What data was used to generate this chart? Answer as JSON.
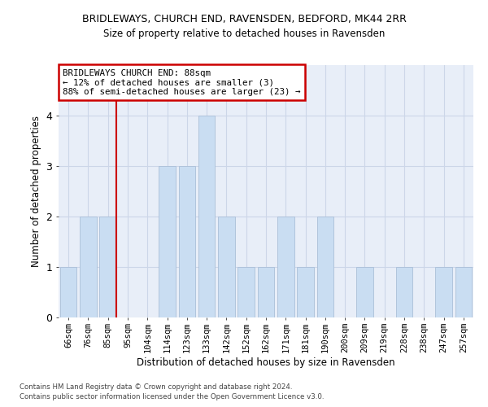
{
  "title1": "BRIDLEWAYS, CHURCH END, RAVENSDEN, BEDFORD, MK44 2RR",
  "title2": "Size of property relative to detached houses in Ravensden",
  "xlabel": "Distribution of detached houses by size in Ravensden",
  "ylabel": "Number of detached properties",
  "categories": [
    "66sqm",
    "76sqm",
    "85sqm",
    "95sqm",
    "104sqm",
    "114sqm",
    "123sqm",
    "133sqm",
    "142sqm",
    "152sqm",
    "162sqm",
    "171sqm",
    "181sqm",
    "190sqm",
    "200sqm",
    "209sqm",
    "219sqm",
    "228sqm",
    "238sqm",
    "247sqm",
    "257sqm"
  ],
  "values": [
    1,
    2,
    2,
    0,
    0,
    3,
    3,
    4,
    2,
    1,
    1,
    2,
    1,
    2,
    0,
    1,
    0,
    1,
    0,
    1,
    1
  ],
  "bar_color": "#c9ddf2",
  "bar_edge_color": "#aabfd8",
  "red_line_index": 2,
  "annotation_line1": "BRIDLEWAYS CHURCH END: 88sqm",
  "annotation_line2": "← 12% of detached houses are smaller (3)",
  "annotation_line3": "88% of semi-detached houses are larger (23) →",
  "annotation_box_color": "#ffffff",
  "annotation_box_edge": "#cc0000",
  "red_line_color": "#cc0000",
  "ylim": [
    0,
    5
  ],
  "yticks": [
    0,
    1,
    2,
    3,
    4
  ],
  "grid_color": "#ccd6e8",
  "background_color": "#e8eef8",
  "footer1": "Contains HM Land Registry data © Crown copyright and database right 2024.",
  "footer2": "Contains public sector information licensed under the Open Government Licence v3.0."
}
